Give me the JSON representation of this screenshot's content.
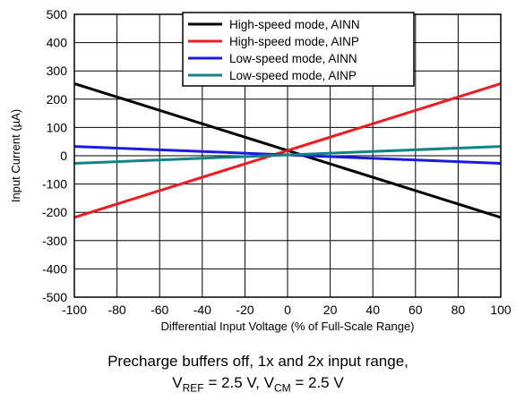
{
  "chart_data": {
    "type": "line",
    "xlabel": "Differential Input Voltage (% of Full-Scale Range)",
    "ylabel": "Input Current (µA)",
    "xlim": [
      -100,
      100
    ],
    "ylim": [
      -500,
      500
    ],
    "xticks": [
      -100,
      -80,
      -60,
      -40,
      -20,
      0,
      20,
      40,
      60,
      80,
      100
    ],
    "yticks": [
      500,
      400,
      300,
      200,
      100,
      0,
      -100,
      -200,
      -300,
      -400,
      -500
    ],
    "grid": true,
    "legend_position": "top-right",
    "series": [
      {
        "name": "High-speed mode, AINN",
        "color": "#000000",
        "x": [
          -100,
          100
        ],
        "y": [
          255,
          -218
        ]
      },
      {
        "name": "High-speed mode, AINP",
        "color": "#ee1c25",
        "x": [
          -100,
          100
        ],
        "y": [
          -218,
          255
        ]
      },
      {
        "name": "Low-speed mode, AINN",
        "color": "#1b1bdf",
        "x": [
          -100,
          100
        ],
        "y": [
          33,
          -27
        ]
      },
      {
        "name": "Low-speed mode, AINP",
        "color": "#138284",
        "x": [
          -100,
          100
        ],
        "y": [
          -27,
          33
        ]
      }
    ]
  },
  "caption": {
    "line1": "Precharge buffers off, 1x and 2x input range,",
    "line2_v": "V",
    "line2_ref": "REF",
    "line2_mid": " = 2.5 V, V",
    "line2_cm": "CM",
    "line2_end": " = 2.5 V"
  }
}
